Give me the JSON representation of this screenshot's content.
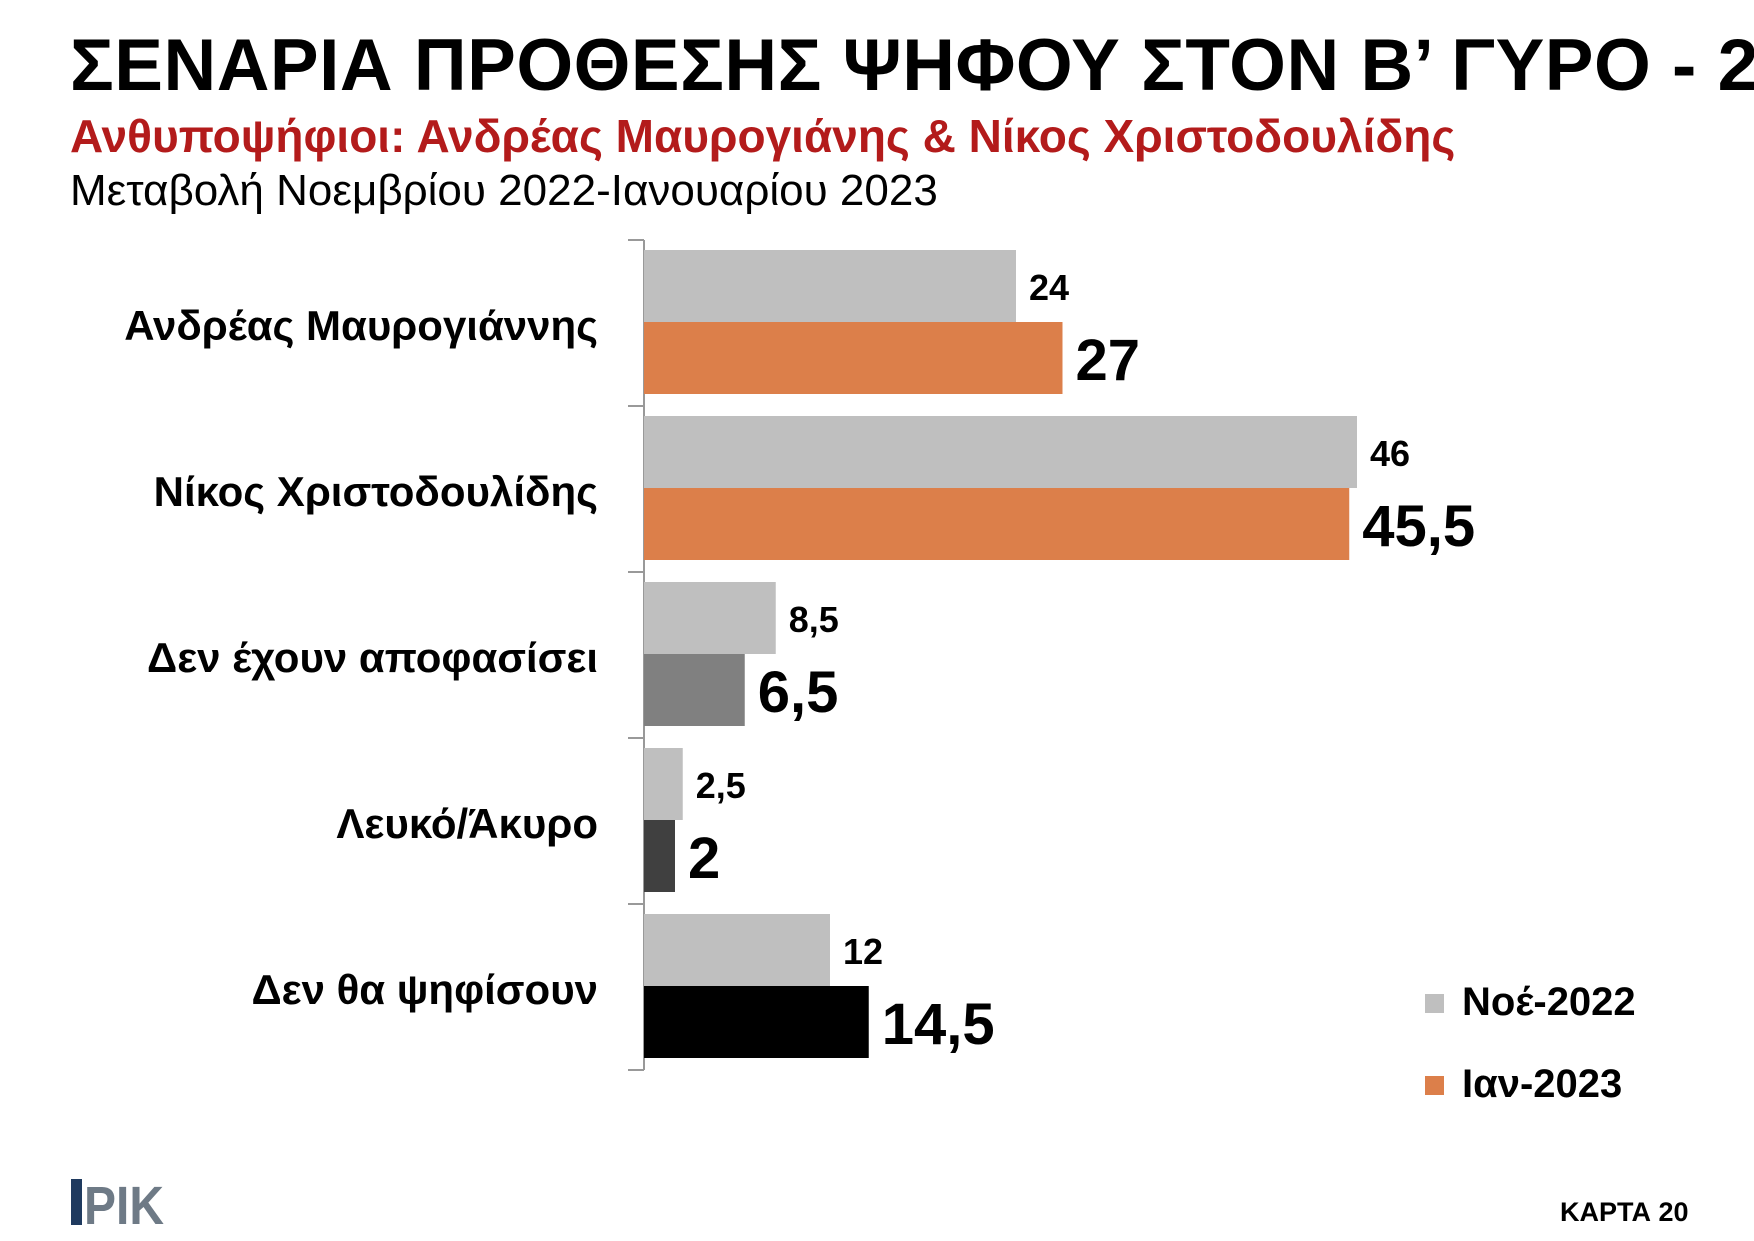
{
  "header": {
    "title": "ΣΕΝΑΡΙΑ ΠΡΟΘΕΣΗΣ ΨΗΦΟΥ ΣΤΟΝ Β’ ΓΥΡΟ - 2",
    "subtitle": "Ανθυποψήφιοι: Ανδρέας Μαυρογιάνης & Νίκος Χριστοδουλίδης",
    "period": "Μεταβολή Νοεμβρίου 2022-Ιανουαρίου 2023"
  },
  "colors": {
    "title": "#000000",
    "subtitle": "#b31b1b",
    "axis": "#999999",
    "logo_bar": "#1f3a5f",
    "logo_text": "#6e7a86"
  },
  "chart_data": {
    "type": "bar",
    "orientation": "horizontal",
    "categories": [
      "Ανδρέας Μαυρογιάννης",
      "Νίκος Χριστοδουλίδης",
      "Δεν έχουν αποφασίσει",
      "Λευκό/Άκυρο",
      "Δεν θα ψηφίσουν"
    ],
    "series": [
      {
        "name": "Νοέ-2022",
        "values": [
          24,
          46,
          8.5,
          2.5,
          12
        ],
        "labels": [
          "24",
          "46",
          "8,5",
          "2,5",
          "12"
        ],
        "color": "#bfbfbf",
        "bar_colors": [
          "#bfbfbf",
          "#bfbfbf",
          "#bfbfbf",
          "#bfbfbf",
          "#bfbfbf"
        ]
      },
      {
        "name": "Ιαν-2023",
        "values": [
          27,
          45.5,
          6.5,
          2,
          14.5
        ],
        "labels": [
          "27",
          "45,5",
          "6,5",
          "2",
          "14,5"
        ],
        "color": "#dc7f4a",
        "bar_colors": [
          "#dc7f4a",
          "#dc7f4a",
          "#808080",
          "#404040",
          "#000000"
        ]
      }
    ],
    "xlim": [
      0,
      50
    ],
    "grid": false,
    "legend_position": "bottom-right"
  },
  "logo": {
    "text": "ΡΙΚ"
  },
  "footer": {
    "card_label": "ΚΑΡΤΑ 20"
  }
}
